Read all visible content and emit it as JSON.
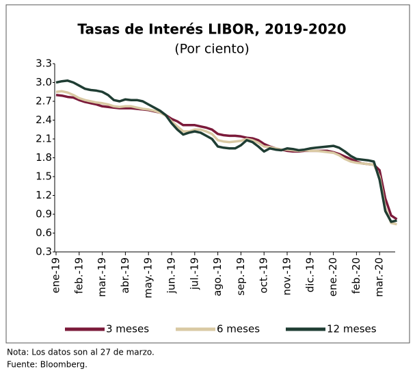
{
  "chart_data": {
    "type": "line",
    "title": "Tasas de Interés LIBOR, 2019-2020",
    "subtitle": "(Por ciento)",
    "categories": [
      "ene-19",
      null,
      null,
      null,
      "feb.-19",
      null,
      null,
      null,
      "mar.-19",
      null,
      null,
      null,
      "abr.-19",
      null,
      null,
      null,
      "may.-19",
      null,
      null,
      null,
      "jun.-19",
      null,
      null,
      null,
      "jul.-19",
      null,
      null,
      null,
      "ago.-19",
      null,
      null,
      null,
      "sep.-19",
      null,
      null,
      null,
      "oct.-19",
      null,
      null,
      null,
      "nov.-19",
      null,
      null,
      null,
      "dic.-19",
      null,
      null,
      null,
      "ene.-20",
      null,
      null,
      null,
      "feb.-20",
      null,
      null,
      null,
      "mar.-20",
      null,
      null,
      null
    ],
    "series": [
      {
        "name": "3 meses",
        "color": "#7b1a3a",
        "values": [
          2.8,
          2.79,
          2.77,
          2.76,
          2.72,
          2.69,
          2.67,
          2.65,
          2.62,
          2.61,
          2.6,
          2.59,
          2.59,
          2.59,
          2.58,
          2.57,
          2.56,
          2.54,
          2.52,
          2.48,
          2.42,
          2.38,
          2.32,
          2.32,
          2.32,
          2.3,
          2.28,
          2.25,
          2.18,
          2.16,
          2.15,
          2.15,
          2.14,
          2.12,
          2.11,
          2.08,
          2.02,
          1.98,
          1.95,
          1.93,
          1.91,
          1.9,
          1.9,
          1.91,
          1.91,
          1.91,
          1.91,
          1.91,
          1.89,
          1.86,
          1.82,
          1.78,
          1.74,
          1.71,
          1.7,
          1.69,
          1.6,
          1.15,
          0.88,
          0.82
        ]
      },
      {
        "name": "6 meses",
        "color": "#d9c9a3",
        "values": [
          2.85,
          2.86,
          2.84,
          2.8,
          2.75,
          2.72,
          2.7,
          2.68,
          2.67,
          2.65,
          2.62,
          2.61,
          2.62,
          2.62,
          2.6,
          2.58,
          2.57,
          2.55,
          2.52,
          2.47,
          2.38,
          2.3,
          2.22,
          2.22,
          2.25,
          2.25,
          2.22,
          2.18,
          2.08,
          2.06,
          2.05,
          2.06,
          2.07,
          2.1,
          2.08,
          2.04,
          1.98,
          1.97,
          1.95,
          1.93,
          1.93,
          1.92,
          1.91,
          1.92,
          1.91,
          1.91,
          1.9,
          1.89,
          1.88,
          1.84,
          1.78,
          1.74,
          1.72,
          1.71,
          1.7,
          1.69,
          1.5,
          1.0,
          0.76,
          0.74
        ]
      },
      {
        "name": "12 meses",
        "color": "#1f3d33",
        "values": [
          3.0,
          3.02,
          3.03,
          3.0,
          2.95,
          2.9,
          2.88,
          2.87,
          2.85,
          2.8,
          2.72,
          2.7,
          2.73,
          2.72,
          2.72,
          2.7,
          2.65,
          2.6,
          2.55,
          2.48,
          2.35,
          2.25,
          2.17,
          2.2,
          2.22,
          2.2,
          2.15,
          2.1,
          1.98,
          1.96,
          1.95,
          1.95,
          2.0,
          2.08,
          2.05,
          1.98,
          1.9,
          1.95,
          1.93,
          1.92,
          1.95,
          1.94,
          1.92,
          1.93,
          1.95,
          1.96,
          1.97,
          1.98,
          1.99,
          1.96,
          1.9,
          1.83,
          1.78,
          1.77,
          1.76,
          1.74,
          1.45,
          0.95,
          0.78,
          0.8
        ]
      }
    ],
    "ylim": [
      0.3,
      3.3
    ],
    "yticks": [
      0.3,
      0.6,
      0.9,
      1.2,
      1.5,
      1.8,
      2.1,
      2.4,
      2.7,
      {
        "value": 3,
        "label": "3.0"
      },
      3.3
    ],
    "grid": false,
    "legend": "bottom",
    "notes": [
      "Nota: Los datos son al 27 de marzo.",
      "Fuente: Bloomberg."
    ]
  }
}
